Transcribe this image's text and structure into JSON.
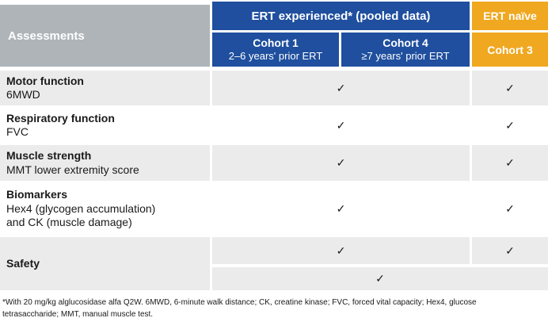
{
  "header": {
    "assessments": "Assessments",
    "pooled_title": "ERT experienced* (pooled data)",
    "naive_title": "ERT naïve",
    "cohort1": {
      "name": "Cohort 1",
      "detail": "2–6 years' prior ERT"
    },
    "cohort4": {
      "name": "Cohort 4",
      "detail": "≥7 years' prior ERT"
    },
    "cohort3": {
      "name": "Cohort 3"
    }
  },
  "rows": [
    {
      "category": "Motor function",
      "detail1": "6MWD",
      "pooled_check": "✓",
      "cohort3_check": "✓"
    },
    {
      "category": "Respiratory function",
      "detail1": "FVC",
      "pooled_check": "✓",
      "cohort3_check": "✓"
    },
    {
      "category": "Muscle strength",
      "detail1": "MMT lower extremity score",
      "pooled_check": "✓",
      "cohort3_check": "✓"
    },
    {
      "category": "Biomarkers",
      "detail1": "Hex4 (glycogen accumulation)",
      "detail2": "and CK (muscle damage)",
      "pooled_check": "✓",
      "cohort3_check": "✓"
    }
  ],
  "safety": {
    "category": "Safety",
    "pooled_check": "✓",
    "cohort3_check": "✓",
    "combined_check": "✓"
  },
  "footnote": "*With 20 mg/kg alglucosidase alfa Q2W. 6MWD, 6-minute walk distance; CK, creatine kinase; FVC, forced vital capacity; Hex4, glucose tetrasaccharide; MMT, manual muscle test.",
  "colors": {
    "header_blue": "#1f4f9e",
    "header_orange": "#efa820",
    "assessments_gray": "#aeb4b7",
    "row_gray": "#ebebeb",
    "text_dark": "#1a1a1a"
  }
}
